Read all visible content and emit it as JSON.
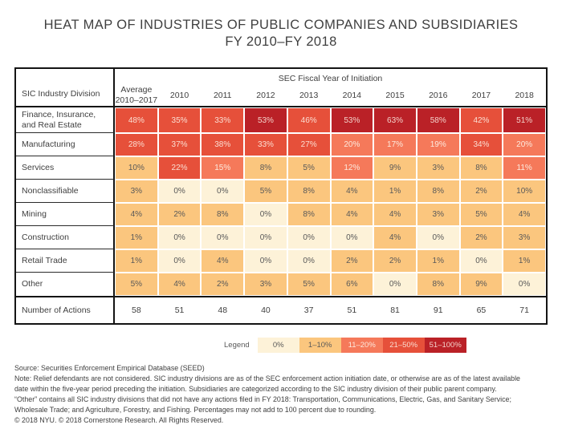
{
  "title": {
    "line1": "HEAT MAP OF INDUSTRIES OF PUBLIC COMPANIES AND SUBSIDIARIES",
    "line2": "FY 2010–FY 2018"
  },
  "table": {
    "corner_header": "SIC Industry Division",
    "span_header": "SEC Fiscal Year of Initiation",
    "avg_header": {
      "line1": "Average",
      "line2": "2010–2017"
    },
    "years": [
      "2010",
      "2011",
      "2012",
      "2013",
      "2014",
      "2015",
      "2016",
      "2017",
      "2018"
    ],
    "rows": [
      {
        "label": "Finance, Insurance, and Real Estate",
        "values": [
          "48%",
          "35%",
          "33%",
          "53%",
          "46%",
          "53%",
          "63%",
          "58%",
          "42%",
          "51%"
        ]
      },
      {
        "label": "Manufacturing",
        "values": [
          "28%",
          "37%",
          "38%",
          "33%",
          "27%",
          "20%",
          "17%",
          "19%",
          "34%",
          "20%"
        ]
      },
      {
        "label": "Services",
        "values": [
          "10%",
          "22%",
          "15%",
          "8%",
          "5%",
          "12%",
          "9%",
          "3%",
          "8%",
          "11%"
        ]
      },
      {
        "label": "Nonclassifiable",
        "values": [
          "3%",
          "0%",
          "0%",
          "5%",
          "8%",
          "4%",
          "1%",
          "8%",
          "2%",
          "10%"
        ]
      },
      {
        "label": "Mining",
        "values": [
          "4%",
          "2%",
          "8%",
          "0%",
          "8%",
          "4%",
          "4%",
          "3%",
          "5%",
          "4%"
        ]
      },
      {
        "label": "Construction",
        "values": [
          "1%",
          "0%",
          "0%",
          "0%",
          "0%",
          "0%",
          "4%",
          "0%",
          "2%",
          "3%"
        ]
      },
      {
        "label": "Retail Trade",
        "values": [
          "1%",
          "0%",
          "4%",
          "0%",
          "0%",
          "2%",
          "2%",
          "1%",
          "0%",
          "1%"
        ]
      },
      {
        "label": "Other",
        "values": [
          "5%",
          "4%",
          "2%",
          "3%",
          "5%",
          "6%",
          "0%",
          "8%",
          "9%",
          "0%"
        ]
      }
    ],
    "totals_row": {
      "label": "Number of Actions",
      "values": [
        "58",
        "51",
        "48",
        "40",
        "37",
        "51",
        "81",
        "91",
        "65",
        "71"
      ]
    }
  },
  "legend": {
    "label": "Legend",
    "buckets": [
      {
        "label": "0%",
        "min": 0,
        "max": 0,
        "color": "#fdf2d8",
        "text_color": "#595959"
      },
      {
        "label": "1–10%",
        "min": 1,
        "max": 10,
        "color": "#fbc67e",
        "text_color": "#595959"
      },
      {
        "label": "11–20%",
        "min": 11,
        "max": 20,
        "color": "#f5795a",
        "text_color": "#fdeade"
      },
      {
        "label": "21–50%",
        "min": 21,
        "max": 50,
        "color": "#e6503a",
        "text_color": "#fbded2"
      },
      {
        "label": "51–100%",
        "min": 51,
        "max": 100,
        "color": "#ba2127",
        "text_color": "#f4d2cb"
      }
    ]
  },
  "footer": {
    "lines": [
      "Source:  Securities Enforcement Empirical Database (SEED)",
      "Note:  Relief defendants are not considered. SIC industry divisions are as of the SEC enforcement action initiation date, or otherwise are as of the latest available",
      "date within the five-year period preceding the initiation. Subsidiaries are categorized according to the SIC industry division of their public parent company.",
      "“Other” contains all SIC industry divisions that did not have any actions filed in FY 2018: Transportation, Communications, Electric, Gas, and Sanitary Service;",
      "Wholesale Trade; and Agriculture, Forestry, and Fishing. Percentages may not add to 100 percent due to rounding.",
      "© 2018 NYU. © 2018 Cornerstone Research. All Rights Reserved."
    ]
  },
  "chart_data": {
    "type": "heatmap",
    "title": "HEAT MAP OF INDUSTRIES OF PUBLIC COMPANIES AND SUBSIDIARIES FY 2010–FY 2018",
    "columns": [
      "Average 2010–2017",
      "2010",
      "2011",
      "2012",
      "2013",
      "2014",
      "2015",
      "2016",
      "2017",
      "2018"
    ],
    "row_categories": [
      "Finance, Insurance, and Real Estate",
      "Manufacturing",
      "Services",
      "Nonclassifiable",
      "Mining",
      "Construction",
      "Retail Trade",
      "Other"
    ],
    "values_percent": [
      [
        48,
        35,
        33,
        53,
        46,
        53,
        63,
        58,
        42,
        51
      ],
      [
        28,
        37,
        38,
        33,
        27,
        20,
        17,
        19,
        34,
        20
      ],
      [
        10,
        22,
        15,
        8,
        5,
        12,
        9,
        3,
        8,
        11
      ],
      [
        3,
        0,
        0,
        5,
        8,
        4,
        1,
        8,
        2,
        10
      ],
      [
        4,
        2,
        8,
        0,
        8,
        4,
        4,
        3,
        5,
        4
      ],
      [
        1,
        0,
        0,
        0,
        0,
        0,
        4,
        0,
        2,
        3
      ],
      [
        1,
        0,
        4,
        0,
        0,
        2,
        2,
        1,
        0,
        1
      ],
      [
        5,
        4,
        2,
        3,
        5,
        6,
        0,
        8,
        9,
        0
      ]
    ],
    "number_of_actions": [
      58,
      51,
      48,
      40,
      37,
      51,
      81,
      91,
      65,
      71
    ],
    "legend_bins": [
      "0%",
      "1–10%",
      "11–20%",
      "21–50%",
      "51–100%"
    ],
    "legend_position": "bottom",
    "grid": false
  }
}
